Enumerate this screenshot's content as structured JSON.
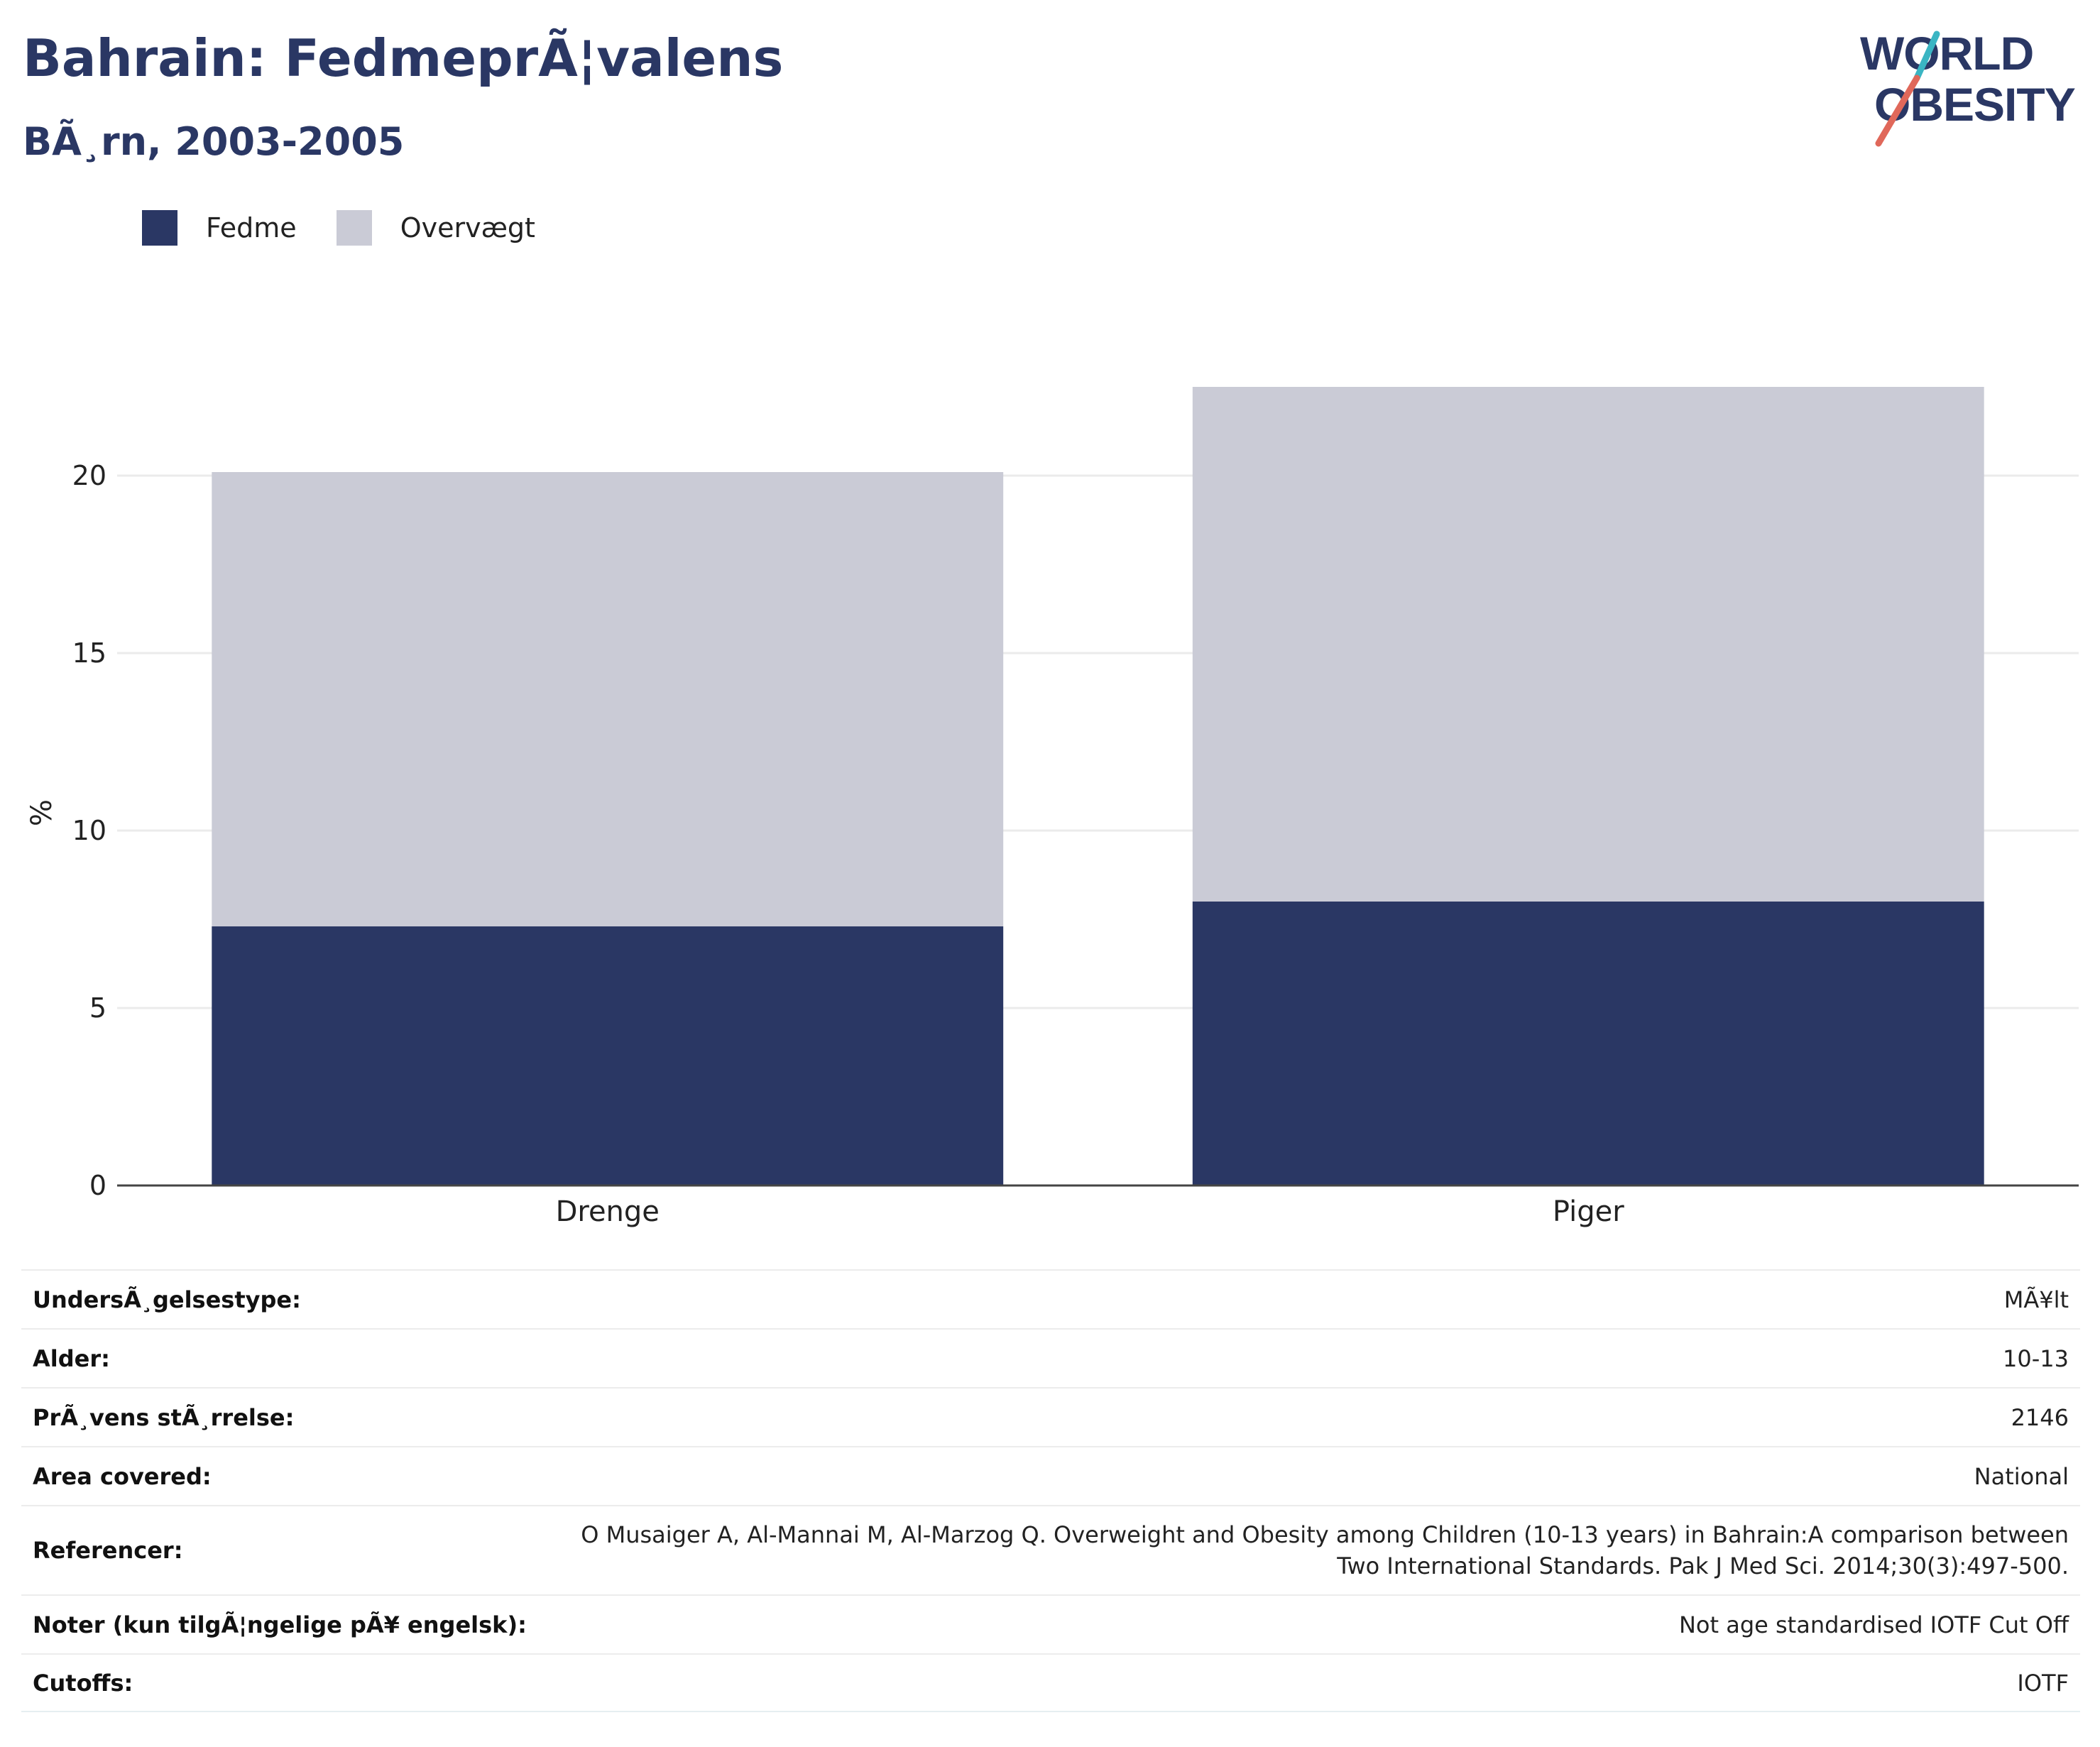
{
  "header": {
    "title": "Bahrain: FedmeprÃ¦valens",
    "subtitle": "BÃ¸rn, 2003-2005"
  },
  "logo": {
    "line1": "WORLD",
    "line2": "OBESITY",
    "colors": {
      "text": "#2a3764",
      "slash_top": "#3ab5c3",
      "slash_bottom": "#e0685a"
    }
  },
  "legend": {
    "items": [
      {
        "label": "Fedme",
        "color": "#2a3764"
      },
      {
        "label": "Overvægt",
        "color": "#cacbd6"
      }
    ]
  },
  "chart_data": {
    "type": "bar",
    "stacked": true,
    "categories": [
      "Drenge",
      "Piger"
    ],
    "series": [
      {
        "name": "Fedme",
        "color": "#2a3764",
        "values": [
          7.3,
          8.0
        ]
      },
      {
        "name": "Overvægt",
        "color": "#cacbd6",
        "values": [
          12.8,
          14.5
        ]
      }
    ],
    "ylabel": "%",
    "ylim": [
      0,
      25
    ],
    "yticks": [
      0,
      5,
      10,
      15,
      20
    ],
    "grid": true,
    "legend_position": "top-left"
  },
  "details": {
    "rows": [
      {
        "label": "UndersÃ¸gelsestype:",
        "value": "MÃ¥lt"
      },
      {
        "label": "Alder:",
        "value": "10-13"
      },
      {
        "label": "PrÃ¸vens stÃ¸rrelse:",
        "value": "2146"
      },
      {
        "label": "Area covered:",
        "value": "National"
      },
      {
        "label": "Referencer:",
        "value_lines": [
          "O Musaiger A, Al-Mannai M, Al-Marzog Q. Overweight and Obesity among Children (10-13 years) in Bahrain:A comparison between",
          "Two International Standards. Pak J Med Sci. 2014;30(3):497-500."
        ]
      },
      {
        "label": "Noter (kun tilgÃ¦ngelige pÃ¥ engelsk):",
        "value": "Not age standardised IOTF Cut Off"
      },
      {
        "label": "Cutoffs:",
        "value": "IOTF"
      }
    ]
  }
}
